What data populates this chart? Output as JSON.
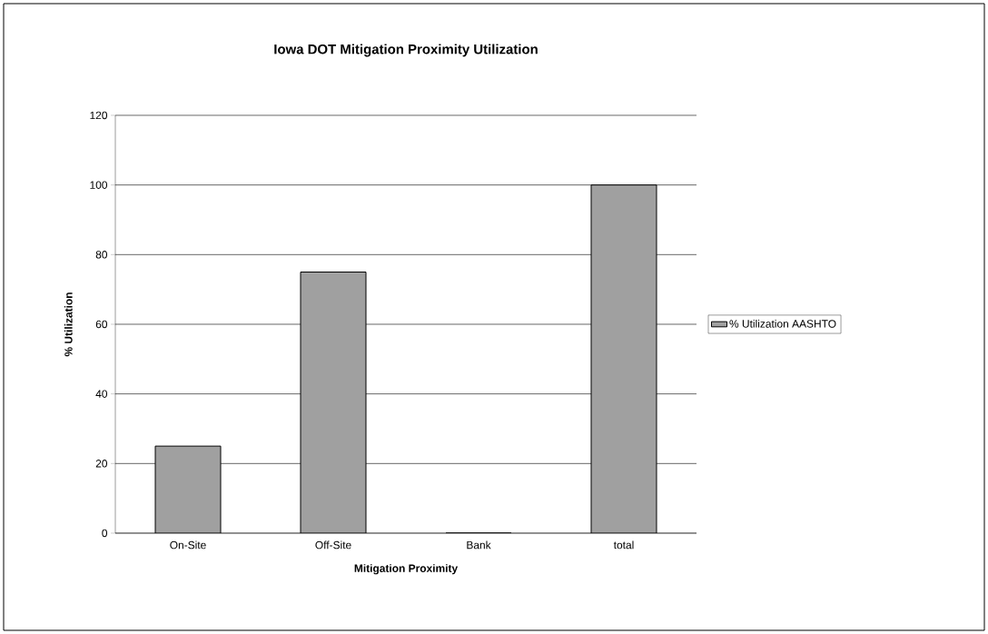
{
  "chart_data": {
    "type": "bar",
    "title": "Iowa DOT Mitigation Proximity Utilization",
    "xlabel": "Mitigation Proximity",
    "ylabel": "% Utilization",
    "categories": [
      "On-Site",
      "Off-Site",
      "Bank",
      "total"
    ],
    "series": [
      {
        "name": "% Utilization AASHTO",
        "color": "#a0a0a0",
        "values": [
          25,
          75,
          0,
          100
        ]
      }
    ],
    "ylim": [
      0,
      120
    ],
    "yticks": [
      0,
      20,
      40,
      60,
      80,
      100,
      120
    ],
    "grid": "y",
    "legend": "right"
  }
}
